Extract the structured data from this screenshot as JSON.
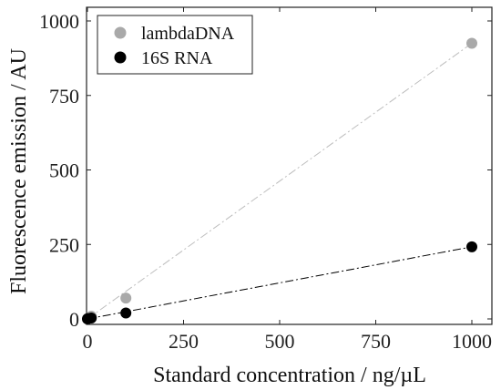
{
  "chart_data": {
    "type": "scatter",
    "xlabel": "Standard concentration / ng/µL",
    "ylabel": "Fluorescence emission / AU",
    "xlim": [
      0,
      1000
    ],
    "ylim": [
      0,
      1000
    ],
    "xticks": [
      0,
      250,
      500,
      750,
      1000
    ],
    "yticks": [
      0,
      250,
      500,
      750,
      1000
    ],
    "grid": false,
    "legend_position": "top-left",
    "series": [
      {
        "name": "lambdaDNA",
        "color": "#a9a9a9",
        "line_style": "dash-dot",
        "x": [
          0,
          1,
          10,
          100,
          1000
        ],
        "y": [
          0,
          1,
          9,
          70,
          925
        ],
        "fit": [
          [
            0,
            0
          ],
          [
            1000,
            925
          ]
        ]
      },
      {
        "name": "16S RNA",
        "color": "#000000",
        "line_style": "dash-dot",
        "x": [
          0,
          1,
          10,
          100,
          1000
        ],
        "y": [
          0,
          1,
          3,
          20,
          242
        ],
        "fit": [
          [
            0,
            0
          ],
          [
            1000,
            242
          ]
        ]
      }
    ]
  }
}
